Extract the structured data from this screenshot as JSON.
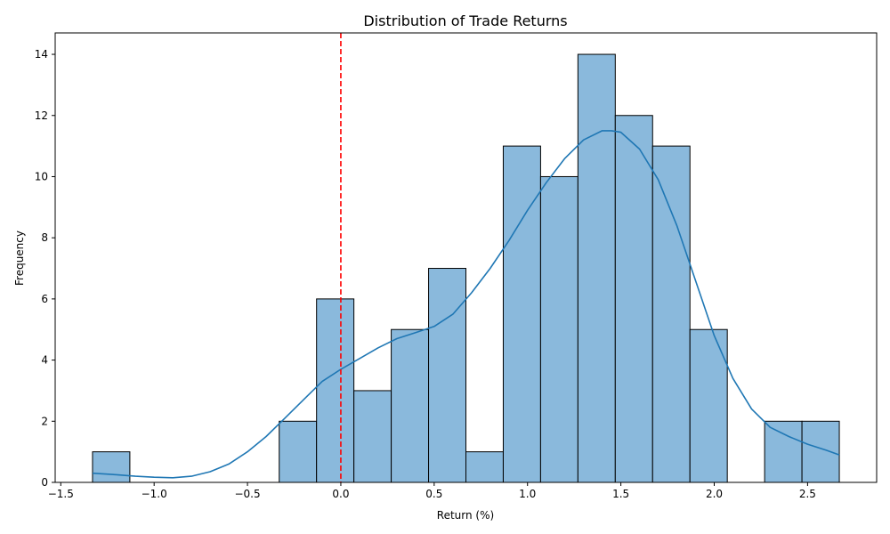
{
  "chart_data": {
    "type": "bar",
    "title": "Distribution of Trade Returns",
    "xlabel": "Return (%)",
    "ylabel": "Frequency",
    "xlim": [
      -1.53,
      2.87
    ],
    "ylim": [
      0,
      14.7
    ],
    "xticks": [
      -1.5,
      -1.0,
      -0.5,
      0.0,
      0.5,
      1.0,
      1.5,
      2.0,
      2.5
    ],
    "xtick_labels": [
      "−1.5",
      "−1.0",
      "−0.5",
      "0.0",
      "0.5",
      "1.0",
      "1.5",
      "2.0",
      "2.5"
    ],
    "yticks": [
      0,
      2,
      4,
      6,
      8,
      10,
      12,
      14
    ],
    "ytick_labels": [
      "0",
      "2",
      "4",
      "6",
      "8",
      "10",
      "12",
      "14"
    ],
    "bin_start": -1.33,
    "bin_width": 0.2,
    "counts": [
      1,
      0,
      0,
      0,
      0,
      2,
      6,
      3,
      5,
      7,
      1,
      11,
      10,
      14,
      12,
      11,
      5,
      0,
      2,
      2
    ],
    "bar_color": "#8ab9dc",
    "bar_edge_color": "#000000",
    "kde_color": "#1f77b4",
    "kde": {
      "x": [
        -1.33,
        -1.2,
        -1.1,
        -1.0,
        -0.9,
        -0.8,
        -0.7,
        -0.6,
        -0.5,
        -0.4,
        -0.3,
        -0.2,
        -0.1,
        0.0,
        0.1,
        0.2,
        0.3,
        0.4,
        0.5,
        0.6,
        0.7,
        0.8,
        0.9,
        1.0,
        1.1,
        1.2,
        1.3,
        1.4,
        1.45,
        1.5,
        1.6,
        1.7,
        1.8,
        1.9,
        2.0,
        2.1,
        2.2,
        2.3,
        2.4,
        2.5,
        2.6,
        2.67
      ],
      "y": [
        0.3,
        0.25,
        0.2,
        0.17,
        0.15,
        0.2,
        0.35,
        0.6,
        1.0,
        1.5,
        2.1,
        2.7,
        3.3,
        3.7,
        4.05,
        4.4,
        4.7,
        4.9,
        5.1,
        5.5,
        6.2,
        7.0,
        7.9,
        8.9,
        9.8,
        10.6,
        11.2,
        11.5,
        11.5,
        11.45,
        10.9,
        9.9,
        8.4,
        6.6,
        4.8,
        3.4,
        2.4,
        1.8,
        1.5,
        1.25,
        1.05,
        0.9
      ]
    },
    "vline": {
      "x": 0.0,
      "color": "#ff0000",
      "style": "dashed"
    },
    "grid": false
  }
}
